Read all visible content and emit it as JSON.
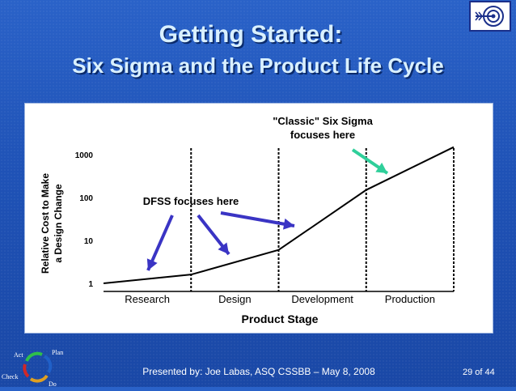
{
  "slide": {
    "title": "Getting Started:",
    "subtitle": "Six Sigma and the Product Life Cycle",
    "footer": "Presented by: Joe Labas, ASQ  CSSBB – May 8, 2008",
    "page_number": "29 of 44",
    "cycle_labels": {
      "act": "Act",
      "plan": "Plan",
      "check": "Check",
      "do": "Do"
    },
    "logo_icon": "target-arrow-icon"
  },
  "chart_data": {
    "type": "line",
    "xlabel": "Product Stage",
    "ylabel": [
      "Relative Cost to Make",
      "a Design Change"
    ],
    "categories": [
      "Research",
      "Design",
      "Development",
      "Production"
    ],
    "y_scale": "log",
    "y_ticks": [
      "1",
      "10",
      "100",
      "1000"
    ],
    "ylim": [
      1,
      1000
    ],
    "grid": "dashed vertical stage dividers",
    "series": [
      {
        "values": [
          1,
          1.6,
          6,
          1500
        ]
      }
    ],
    "line_x_positions": [
      0,
      1,
      2,
      3,
      4
    ],
    "line_y_values": [
      1,
      1.6,
      6,
      150,
      1500
    ],
    "annotations": {
      "dfss": "DFSS focuses here",
      "classic": [
        "\"Classic\" Six Sigma",
        "focuses here"
      ]
    },
    "colors": {
      "line": "#000000",
      "dfss_arrow": "#3a34c4",
      "classic_arrow": "#2fcf9a",
      "divider": "#000000"
    }
  }
}
